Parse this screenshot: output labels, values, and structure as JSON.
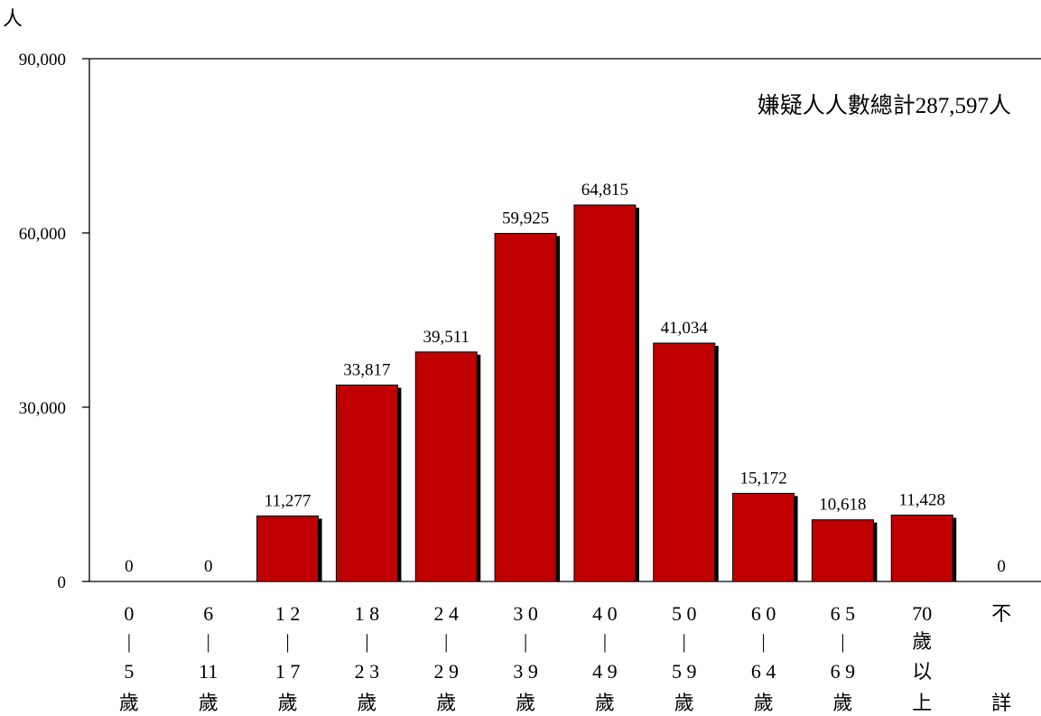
{
  "chart_data": {
    "type": "bar",
    "ylabel": "人",
    "annotation": "嫌疑人人數總計287,597人",
    "ylim": [
      0,
      90000
    ],
    "yticks": [
      "0",
      "30,000",
      "60,000",
      "90,000"
    ],
    "ytick_values": [
      0,
      30000,
      60000,
      90000
    ],
    "grid": false,
    "colors": {
      "bar": "#c00000",
      "shadow": "#000000"
    },
    "categories": [
      [
        "0",
        "|",
        "5",
        "歲"
      ],
      [
        "6",
        "|",
        "11",
        "歲"
      ],
      [
        "1 2",
        "|",
        "1 7",
        "歲"
      ],
      [
        "1 8",
        "|",
        "2 3",
        "歲"
      ],
      [
        "2 4",
        "|",
        "2 9",
        "歲"
      ],
      [
        "3 0",
        "|",
        "3 9",
        "歲"
      ],
      [
        "4 0",
        "|",
        "4 9",
        "歲"
      ],
      [
        "5 0",
        "|",
        "5 9",
        "歲"
      ],
      [
        "6 0",
        "|",
        "6 4",
        "歲"
      ],
      [
        "6 5",
        "|",
        "6 9",
        "歲"
      ],
      [
        "70",
        "歲",
        "以",
        "上"
      ],
      [
        "不",
        "",
        "",
        "詳"
      ]
    ],
    "values": [
      0,
      0,
      11277,
      33817,
      39511,
      59925,
      64815,
      41034,
      15172,
      10618,
      11428,
      0
    ],
    "value_labels": [
      "0",
      "0",
      "11,277",
      "33,817",
      "39,511",
      "59,925",
      "64,815",
      "41,034",
      "15,172",
      "10,618",
      "11,428",
      "0"
    ]
  }
}
